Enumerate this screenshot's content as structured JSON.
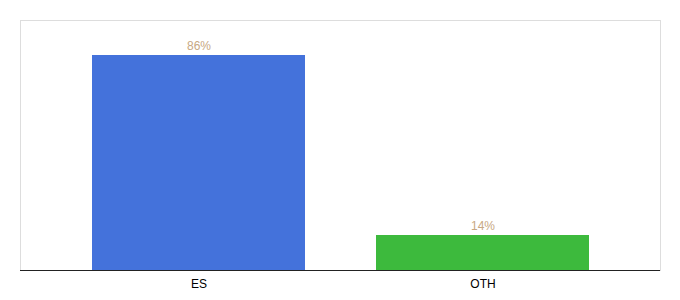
{
  "chart_data": {
    "type": "bar",
    "categories": [
      "ES",
      "OTH"
    ],
    "values": [
      86,
      14
    ],
    "colors": [
      "#4472db",
      "#3dba3d"
    ],
    "value_labels": [
      "86%",
      "14%"
    ],
    "data_labels": true,
    "ylim": [
      0,
      100
    ],
    "tick_labels": "x",
    "grid": false
  }
}
